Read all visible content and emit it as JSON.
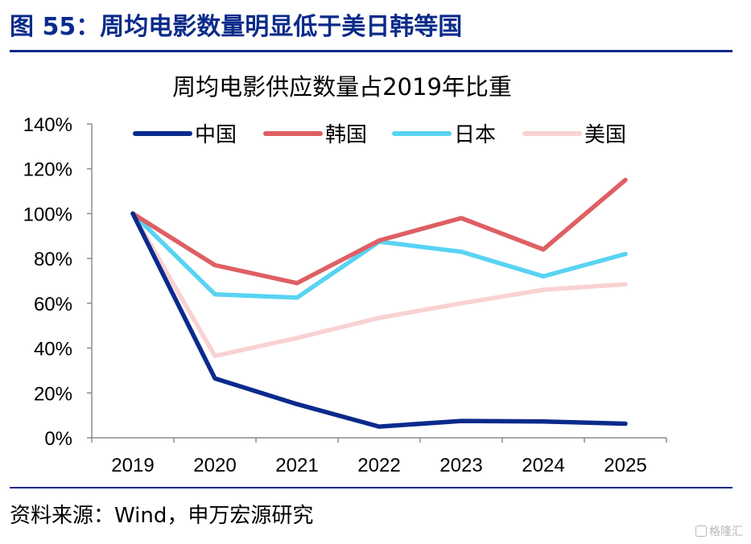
{
  "figure": {
    "title": "图 55：周均电影数量明显低于美日韩等国",
    "source": "资料来源：Wind，申万宏源研究",
    "watermark": "格隆汇",
    "watermark_icon": "gelonghui-logo-icon"
  },
  "chart_data": {
    "type": "line",
    "title": "周均电影供应数量占2019年比重",
    "xlabel": "",
    "ylabel": "",
    "categories": [
      "2019",
      "2020",
      "2021",
      "2022",
      "2023",
      "2024",
      "2025"
    ],
    "ylim": [
      0,
      140
    ],
    "yticks": [
      0,
      20,
      40,
      60,
      80,
      100,
      120,
      140
    ],
    "ytick_labels": [
      "0%",
      "20%",
      "40%",
      "60%",
      "80%",
      "100%",
      "120%",
      "140%"
    ],
    "y_unit": "%",
    "grid": false,
    "legend_position": "top",
    "series": [
      {
        "name": "中国",
        "color": "#0a2a8c",
        "values": [
          100,
          26.5,
          15,
          5,
          7.5,
          7.3,
          6.3
        ]
      },
      {
        "name": "韩国",
        "color": "#de5f63",
        "values": [
          100,
          77,
          69,
          88,
          98,
          84,
          115
        ]
      },
      {
        "name": "日本",
        "color": "#59d3f3",
        "values": [
          100,
          64,
          62.5,
          87.5,
          83,
          72,
          82
        ]
      },
      {
        "name": "美国",
        "color": "#f9d2d2",
        "values": [
          100,
          36.5,
          44.5,
          53.5,
          60,
          66,
          68.5
        ]
      }
    ]
  }
}
